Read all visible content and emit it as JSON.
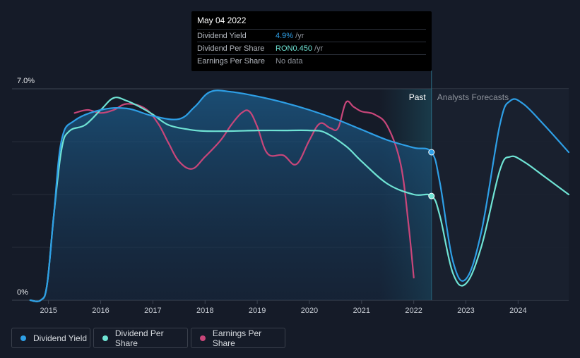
{
  "tooltip": {
    "date": "May 04 2022",
    "rows": [
      {
        "label": "Dividend Yield",
        "value": "4.9%",
        "unit": " /yr",
        "color": "#2e9fe6"
      },
      {
        "label": "Dividend Per Share",
        "value": "RON0.450",
        "unit": " /yr",
        "color": "#6fe3d4"
      },
      {
        "label": "Earnings Per Share",
        "value": "No data",
        "unit": "",
        "color": "#8f949c"
      }
    ]
  },
  "regions": {
    "past_label": "Past",
    "forecast_label": "Analysts Forecasts"
  },
  "legend": [
    {
      "label": "Dividend Yield",
      "color": "#2e9fe6"
    },
    {
      "label": "Dividend Per Share",
      "color": "#6fe3d4"
    },
    {
      "label": "Earnings Per Share",
      "color": "#c8467a"
    }
  ],
  "chart_data": {
    "type": "line",
    "title": "",
    "xlabel": "",
    "ylabel": "",
    "x_ticks": [
      "2015",
      "2016",
      "2017",
      "2018",
      "2019",
      "2020",
      "2021",
      "2022",
      "2023",
      "2024"
    ],
    "y_tick_labels": [
      "7.0%",
      "0%"
    ],
    "ylim": [
      0,
      7.0
    ],
    "xlim": [
      2014.3,
      2024.97
    ],
    "past_end": 2022.34,
    "shaded_window": [
      2021.34,
      2022.34
    ],
    "grid": true,
    "legend_position": "bottom-left",
    "series": [
      {
        "name": "Dividend Yield",
        "color": "#2e9fe6",
        "marker_at": [
          2022.34,
          4.9
        ],
        "points": [
          [
            2014.65,
            0
          ],
          [
            2014.85,
            0
          ],
          [
            2014.97,
            0.5
          ],
          [
            2015.1,
            2.8
          ],
          [
            2015.25,
            5.3
          ],
          [
            2015.5,
            5.95
          ],
          [
            2016.0,
            6.3
          ],
          [
            2016.5,
            6.35
          ],
          [
            2017.0,
            6.1
          ],
          [
            2017.5,
            6.0
          ],
          [
            2017.8,
            6.4
          ],
          [
            2018.1,
            6.9
          ],
          [
            2018.5,
            6.9
          ],
          [
            2019.0,
            6.75
          ],
          [
            2019.5,
            6.55
          ],
          [
            2020.0,
            6.3
          ],
          [
            2020.5,
            6.0
          ],
          [
            2021.0,
            5.65
          ],
          [
            2021.5,
            5.3
          ],
          [
            2022.0,
            5.05
          ],
          [
            2022.34,
            4.9
          ],
          [
            2022.5,
            3.9
          ],
          [
            2022.75,
            1.3
          ],
          [
            2023.0,
            0.7
          ],
          [
            2023.3,
            2.3
          ],
          [
            2023.65,
            5.8
          ],
          [
            2023.85,
            6.6
          ],
          [
            2024.1,
            6.5
          ],
          [
            2024.5,
            5.8
          ],
          [
            2024.97,
            4.9
          ]
        ]
      },
      {
        "name": "Dividend Per Share",
        "color": "#6fe3d4",
        "marker_at": [
          2022.34,
          3.45
        ],
        "points": [
          [
            2014.65,
            0
          ],
          [
            2014.85,
            0
          ],
          [
            2014.97,
            0.5
          ],
          [
            2015.1,
            2.8
          ],
          [
            2015.25,
            5.0
          ],
          [
            2015.4,
            5.6
          ],
          [
            2015.7,
            5.8
          ],
          [
            2016.0,
            6.3
          ],
          [
            2016.25,
            6.7
          ],
          [
            2016.5,
            6.6
          ],
          [
            2016.75,
            6.4
          ],
          [
            2017.0,
            6.15
          ],
          [
            2017.3,
            5.8
          ],
          [
            2017.7,
            5.65
          ],
          [
            2018.0,
            5.6
          ],
          [
            2018.5,
            5.6
          ],
          [
            2019.0,
            5.62
          ],
          [
            2019.5,
            5.62
          ],
          [
            2020.0,
            5.62
          ],
          [
            2020.3,
            5.55
          ],
          [
            2020.7,
            5.1
          ],
          [
            2021.0,
            4.6
          ],
          [
            2021.5,
            3.85
          ],
          [
            2022.0,
            3.5
          ],
          [
            2022.34,
            3.45
          ],
          [
            2022.5,
            2.8
          ],
          [
            2022.75,
            0.9
          ],
          [
            2023.0,
            0.55
          ],
          [
            2023.3,
            1.8
          ],
          [
            2023.65,
            4.3
          ],
          [
            2023.85,
            4.75
          ],
          [
            2024.1,
            4.6
          ],
          [
            2024.5,
            4.1
          ],
          [
            2024.97,
            3.5
          ]
        ]
      },
      {
        "name": "Earnings Per Share",
        "color": "#c8467a",
        "points": [
          [
            2015.5,
            6.2
          ],
          [
            2015.75,
            6.3
          ],
          [
            2016.0,
            6.2
          ],
          [
            2016.25,
            6.3
          ],
          [
            2016.5,
            6.5
          ],
          [
            2016.85,
            6.35
          ],
          [
            2017.1,
            5.85
          ],
          [
            2017.3,
            5.2
          ],
          [
            2017.5,
            4.6
          ],
          [
            2017.75,
            4.35
          ],
          [
            2018.0,
            4.75
          ],
          [
            2018.3,
            5.3
          ],
          [
            2018.5,
            5.8
          ],
          [
            2018.7,
            6.2
          ],
          [
            2018.85,
            6.25
          ],
          [
            2019.0,
            5.75
          ],
          [
            2019.2,
            4.85
          ],
          [
            2019.5,
            4.8
          ],
          [
            2019.75,
            4.5
          ],
          [
            2020.0,
            5.3
          ],
          [
            2020.2,
            5.85
          ],
          [
            2020.4,
            5.7
          ],
          [
            2020.55,
            5.7
          ],
          [
            2020.7,
            6.55
          ],
          [
            2020.85,
            6.4
          ],
          [
            2021.0,
            6.25
          ],
          [
            2021.25,
            6.15
          ],
          [
            2021.5,
            5.75
          ],
          [
            2021.75,
            4.5
          ],
          [
            2021.9,
            2.5
          ],
          [
            2022.0,
            0.75
          ]
        ]
      }
    ]
  }
}
